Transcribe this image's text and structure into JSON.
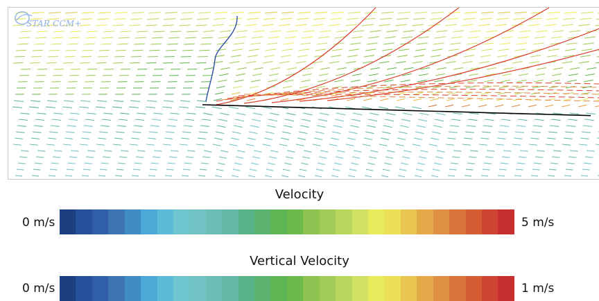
{
  "viewer": {
    "logo_text": "STAR CCM+",
    "field": {
      "mesh_line_color": "#000000",
      "streamline_color": "#d93f2a"
    }
  },
  "legends": [
    {
      "title": "Velocity",
      "min_label": "0 m/s",
      "max_label": "5 m/s",
      "min_value": 0,
      "max_value": 5,
      "unit": "m/s"
    },
    {
      "title": "Vertical Velocity",
      "min_label": "0 m/s",
      "max_label": "1 m/s",
      "min_value": 0,
      "max_value": 1,
      "unit": "m/s"
    }
  ],
  "colormap": [
    "#1c3f7f",
    "#27509a",
    "#305fa8",
    "#3d74b3",
    "#3f8dc4",
    "#4aa9d5",
    "#5cbbd8",
    "#6ec4cf",
    "#71c2c3",
    "#6cbdb4",
    "#62b8a4",
    "#58b389",
    "#5ab26c",
    "#5db554",
    "#6bba4b",
    "#8cc351",
    "#a0cc57",
    "#b8d55c",
    "#d1e262",
    "#e9eb5c",
    "#eadf57",
    "#e8c450",
    "#e4a948",
    "#df8f41",
    "#d9753a",
    "#d45d36",
    "#cd4433",
    "#c62f2f"
  ]
}
